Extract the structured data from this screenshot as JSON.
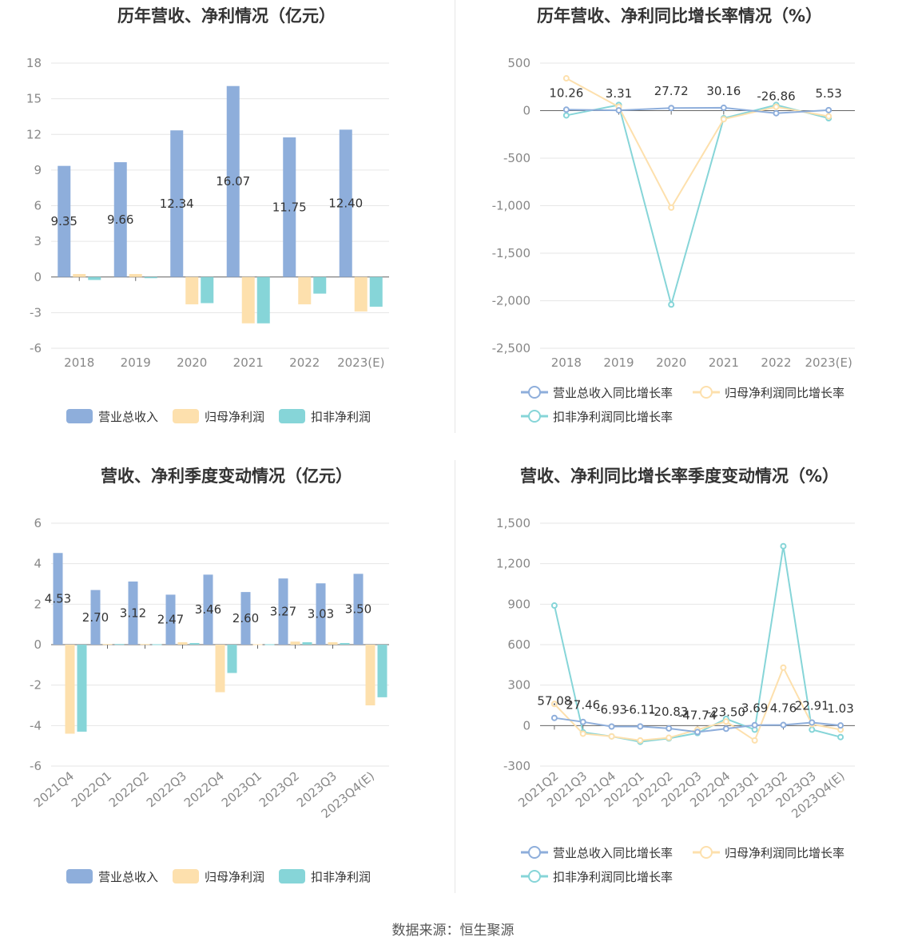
{
  "source": "数据来源：恒生聚源",
  "colors": {
    "revenue": "#8eaedb",
    "net": "#fde0ad",
    "deducted": "#86d5d8"
  },
  "chart_data": [
    {
      "type": "bar",
      "title": "历年营收、净利情况（亿元）",
      "categories": [
        "2018",
        "2019",
        "2020",
        "2021",
        "2022",
        "2023(E)"
      ],
      "ylim": [
        -6,
        18
      ],
      "yticks": [
        "18",
        "15",
        "12",
        "9",
        "6",
        "3",
        "0",
        "-3",
        "-6"
      ],
      "ytick_values": [
        18,
        15,
        12,
        9,
        6,
        3,
        0,
        -3,
        -6
      ],
      "series": [
        {
          "name": "营业总收入",
          "values": [
            9.35,
            9.66,
            12.34,
            16.07,
            11.75,
            12.4
          ],
          "labels": [
            "9.35",
            "9.66",
            "12.34",
            "16.07",
            "11.75",
            "12.40"
          ]
        },
        {
          "name": "归母净利润",
          "values": [
            0.25,
            0.25,
            -2.3,
            -3.9,
            -2.3,
            -2.9
          ]
        },
        {
          "name": "扣非净利润",
          "values": [
            -0.25,
            -0.1,
            -2.2,
            -3.9,
            -1.4,
            -2.5
          ]
        }
      ],
      "legend": [
        "营业总收入",
        "归母净利润",
        "扣非净利润"
      ]
    },
    {
      "type": "line",
      "title": "历年营收、净利同比增长率情况（%）",
      "categories": [
        "2018",
        "2019",
        "2020",
        "2021",
        "2022",
        "2023(E)"
      ],
      "ylim": [
        -2500,
        500
      ],
      "yticks": [
        "500",
        "0",
        "-500",
        "-1,000",
        "-1,500",
        "-2,000",
        "-2,500"
      ],
      "ytick_values": [
        500,
        0,
        -500,
        -1000,
        -1500,
        -2000,
        -2500
      ],
      "series": [
        {
          "name": "营业总收入同比增长率",
          "values": [
            10.26,
            3.31,
            27.72,
            30.16,
            -26.86,
            5.53
          ],
          "labels": [
            "10.26",
            "3.31",
            "27.72",
            "30.16",
            "-26.86",
            "5.53"
          ]
        },
        {
          "name": "归母净利润同比增长率",
          "values": [
            340,
            40,
            -1020,
            -90,
            40,
            -60
          ]
        },
        {
          "name": "扣非净利润同比增长率",
          "values": [
            -50,
            60,
            -2040,
            -80,
            60,
            -80
          ]
        }
      ],
      "legend": [
        "营业总收入同比增长率",
        "归母净利润同比增长率",
        "扣非净利润同比增长率"
      ]
    },
    {
      "type": "bar",
      "title": "营收、净利季度变动情况（亿元）",
      "categories": [
        "2021Q4",
        "2022Q1",
        "2022Q2",
        "2022Q3",
        "2022Q4",
        "2023Q1",
        "2023Q2",
        "2023Q3",
        "2023Q4(E)"
      ],
      "ylim": [
        -6,
        6
      ],
      "yticks": [
        "6",
        "4",
        "2",
        "0",
        "-2",
        "-4",
        "-6"
      ],
      "ytick_values": [
        6,
        4,
        2,
        0,
        -2,
        -4,
        -6
      ],
      "series": [
        {
          "name": "营业总收入",
          "values": [
            4.53,
            2.7,
            3.12,
            2.47,
            3.46,
            2.6,
            3.27,
            3.03,
            3.5
          ],
          "labels": [
            "4.53",
            "2.70",
            "3.12",
            "2.47",
            "3.46",
            "2.60",
            "3.27",
            "3.03",
            "3.50"
          ]
        },
        {
          "name": "归母净利润",
          "values": [
            -4.4,
            0.03,
            0.03,
            0.12,
            -2.35,
            0.02,
            0.15,
            0.12,
            -3.0
          ]
        },
        {
          "name": "扣非净利润",
          "values": [
            -4.3,
            0.03,
            0.02,
            0.08,
            -1.4,
            0.02,
            0.12,
            0.08,
            -2.6
          ]
        }
      ],
      "legend": [
        "营业总收入",
        "归母净利润",
        "扣非净利润"
      ]
    },
    {
      "type": "line",
      "title": "营收、净利同比增长率季度变动情况（%）",
      "categories": [
        "2021Q2",
        "2021Q3",
        "2021Q4",
        "2022Q1",
        "2022Q2",
        "2022Q3",
        "2022Q4",
        "2023Q1",
        "2023Q2",
        "2023Q3",
        "2023Q4(E)"
      ],
      "ylim": [
        -300,
        1500
      ],
      "yticks": [
        "1,500",
        "1,200",
        "900",
        "600",
        "300",
        "0",
        "-300"
      ],
      "ytick_values": [
        1500,
        1200,
        900,
        600,
        300,
        0,
        -300
      ],
      "series": [
        {
          "name": "营业总收入同比增长率",
          "values": [
            57.08,
            27.46,
            -6.93,
            -6.11,
            -20.83,
            -47.74,
            -23.5,
            3.69,
            4.76,
            22.91,
            1.03
          ],
          "labels": [
            "57.08",
            "27.46",
            "-6.93",
            "-6.11",
            "-20.83",
            "-47.74",
            "-23.50",
            "3.69",
            "4.76",
            "22.91",
            "1.03"
          ]
        },
        {
          "name": "归母净利润同比增长率",
          "values": [
            160,
            -60,
            -80,
            -110,
            -90,
            -30,
            30,
            -110,
            430,
            10,
            -30
          ]
        },
        {
          "name": "扣非净利润同比增长率",
          "values": [
            890,
            -50,
            -80,
            -120,
            -95,
            -55,
            50,
            -30,
            1330,
            -30,
            -85
          ]
        }
      ],
      "legend": [
        "营业总收入同比增长率",
        "归母净利润同比增长率",
        "扣非净利润同比增长率"
      ]
    }
  ]
}
